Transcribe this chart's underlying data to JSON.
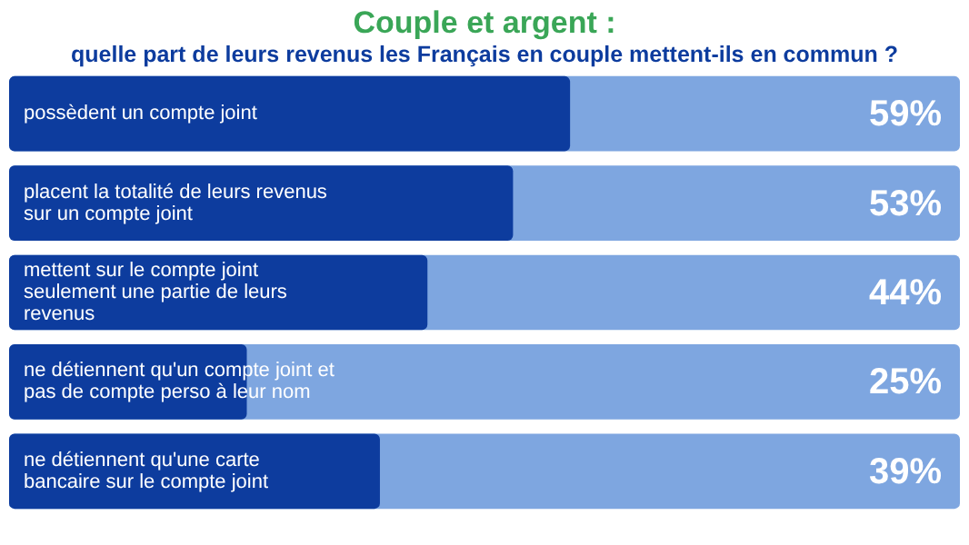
{
  "chart_data": {
    "type": "bar",
    "orientation": "horizontal",
    "title": "Couple et argent :",
    "subtitle": "quelle part de leurs revenus les Français en couple mettent-ils en commun ?",
    "categories": [
      "possèdent un compte joint",
      "placent la totalité de leurs revenus sur un compte joint",
      "mettent sur le compte joint seulement une partie de leurs revenus",
      "ne détiennent qu'un compte joint et pas de compte perso à leur nom",
      "ne détiennent qu'une carte bancaire sur le compte joint"
    ],
    "values": [
      59,
      53,
      44,
      25,
      39
    ],
    "color": "#0d3c9e",
    "value_labels": [
      "59%",
      "53%",
      "44%",
      "25%",
      "39%"
    ],
    "xlim": [
      0,
      100
    ],
    "tick_labels": false,
    "legend": false
  }
}
